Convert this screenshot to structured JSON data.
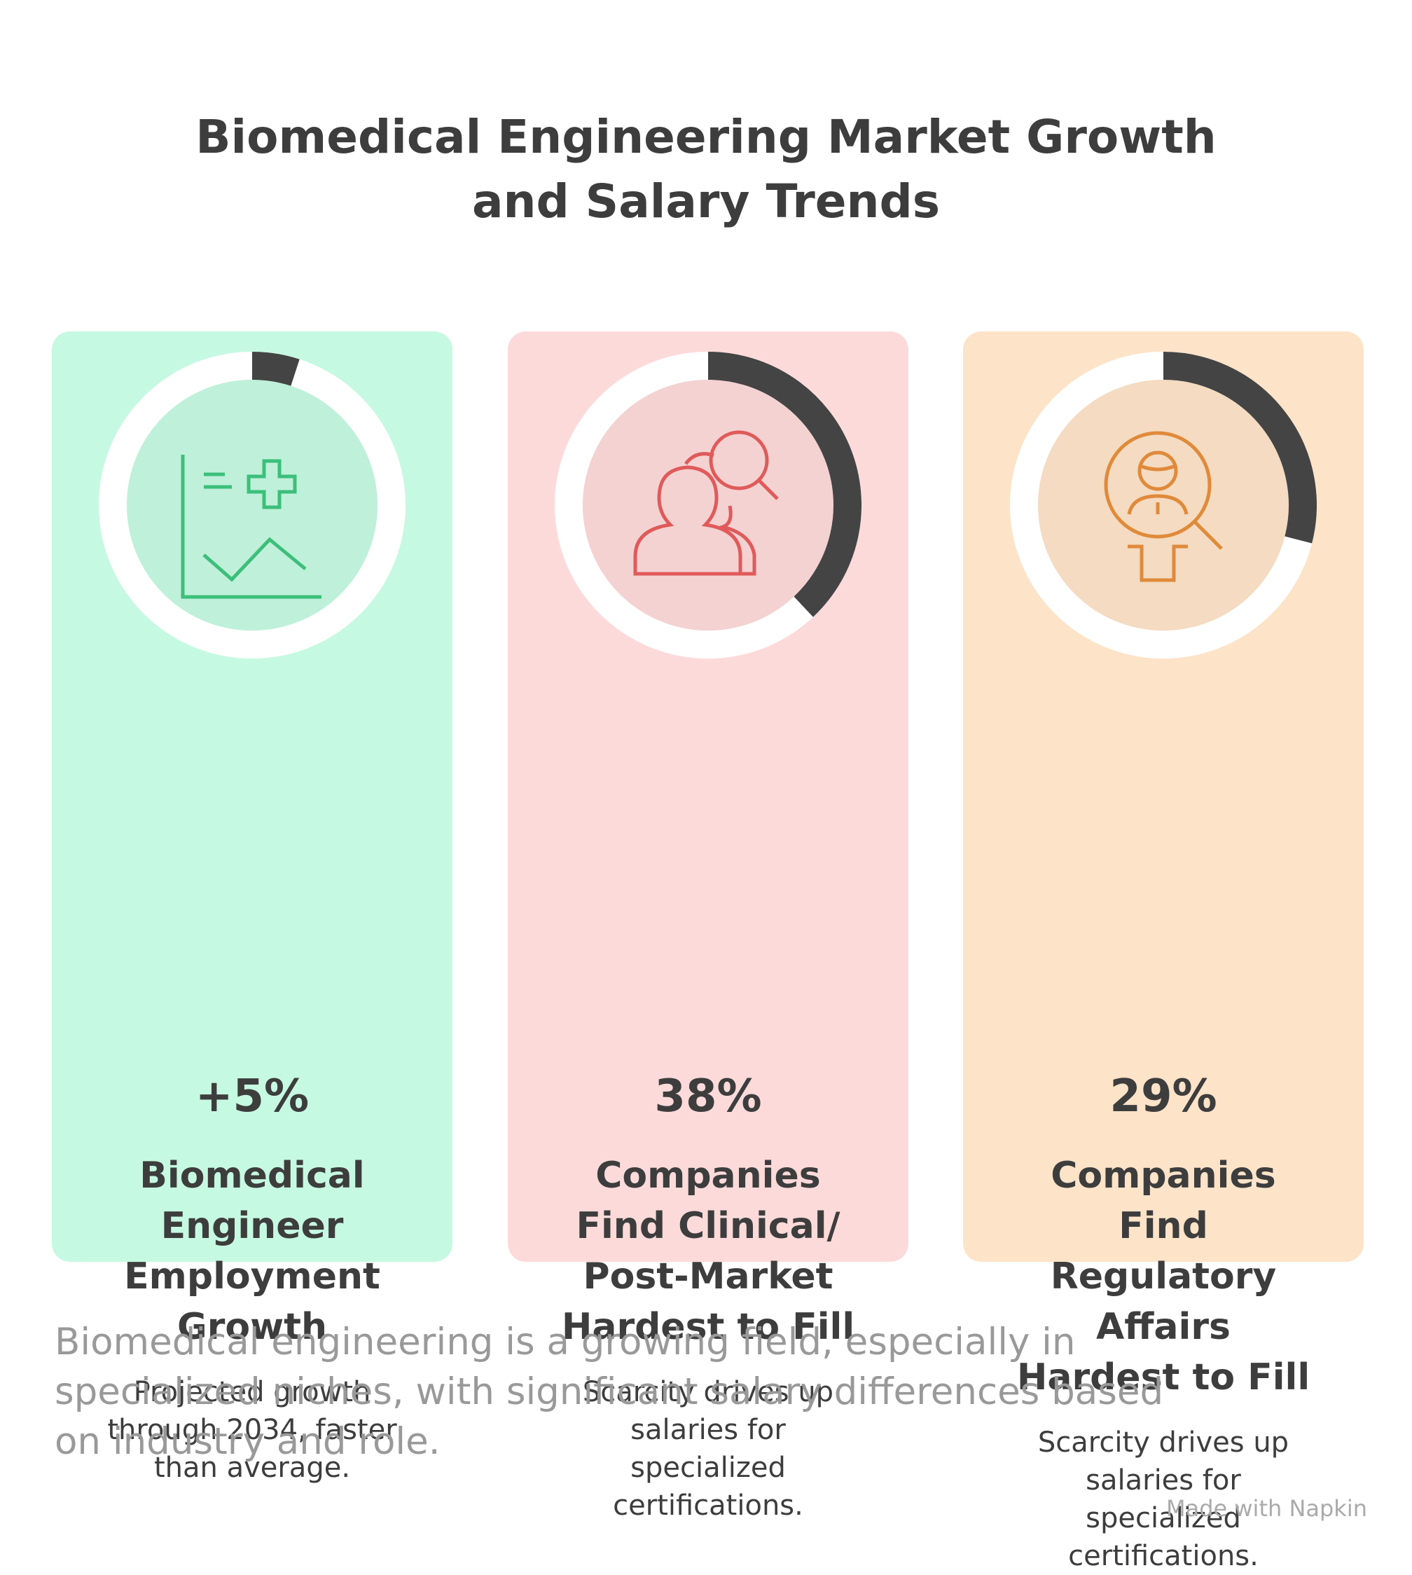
{
  "title": "Biomedical Engineering Market Growth and Salary Trends",
  "chart_data": [
    {
      "type": "donut",
      "values": [
        5
      ],
      "value_labels": [
        "+5%"
      ],
      "title": "Biomedical Engineer Employment Growth",
      "subtitle": "Projected growth through 2034, faster than average.",
      "color": "#444444",
      "background": "#c6f9e2",
      "icon_color": "#3cbf7a"
    },
    {
      "type": "donut",
      "values": [
        38
      ],
      "value_labels": [
        "38%"
      ],
      "title": "Companies Find Clinical/ Post-Market Hardest to Fill",
      "subtitle": "Scarcity drives up salaries for specialized certifications.",
      "color": "#444444",
      "background": "#fddada",
      "icon_color": "#e05a5a"
    },
    {
      "type": "donut",
      "values": [
        29
      ],
      "value_labels": [
        "29%"
      ],
      "title": "Companies Find Regulatory Affairs Hardest to Fill",
      "subtitle": "Scarcity drives up salaries for specialized certifications.",
      "color": "#444444",
      "background": "#fde3c8",
      "icon_color": "#e08a3a"
    }
  ],
  "footer": "Biomedical engineering is a growing field, especially in specialized niches, with significant salary differences based on industry and role.",
  "credit": "Made with Napkin"
}
